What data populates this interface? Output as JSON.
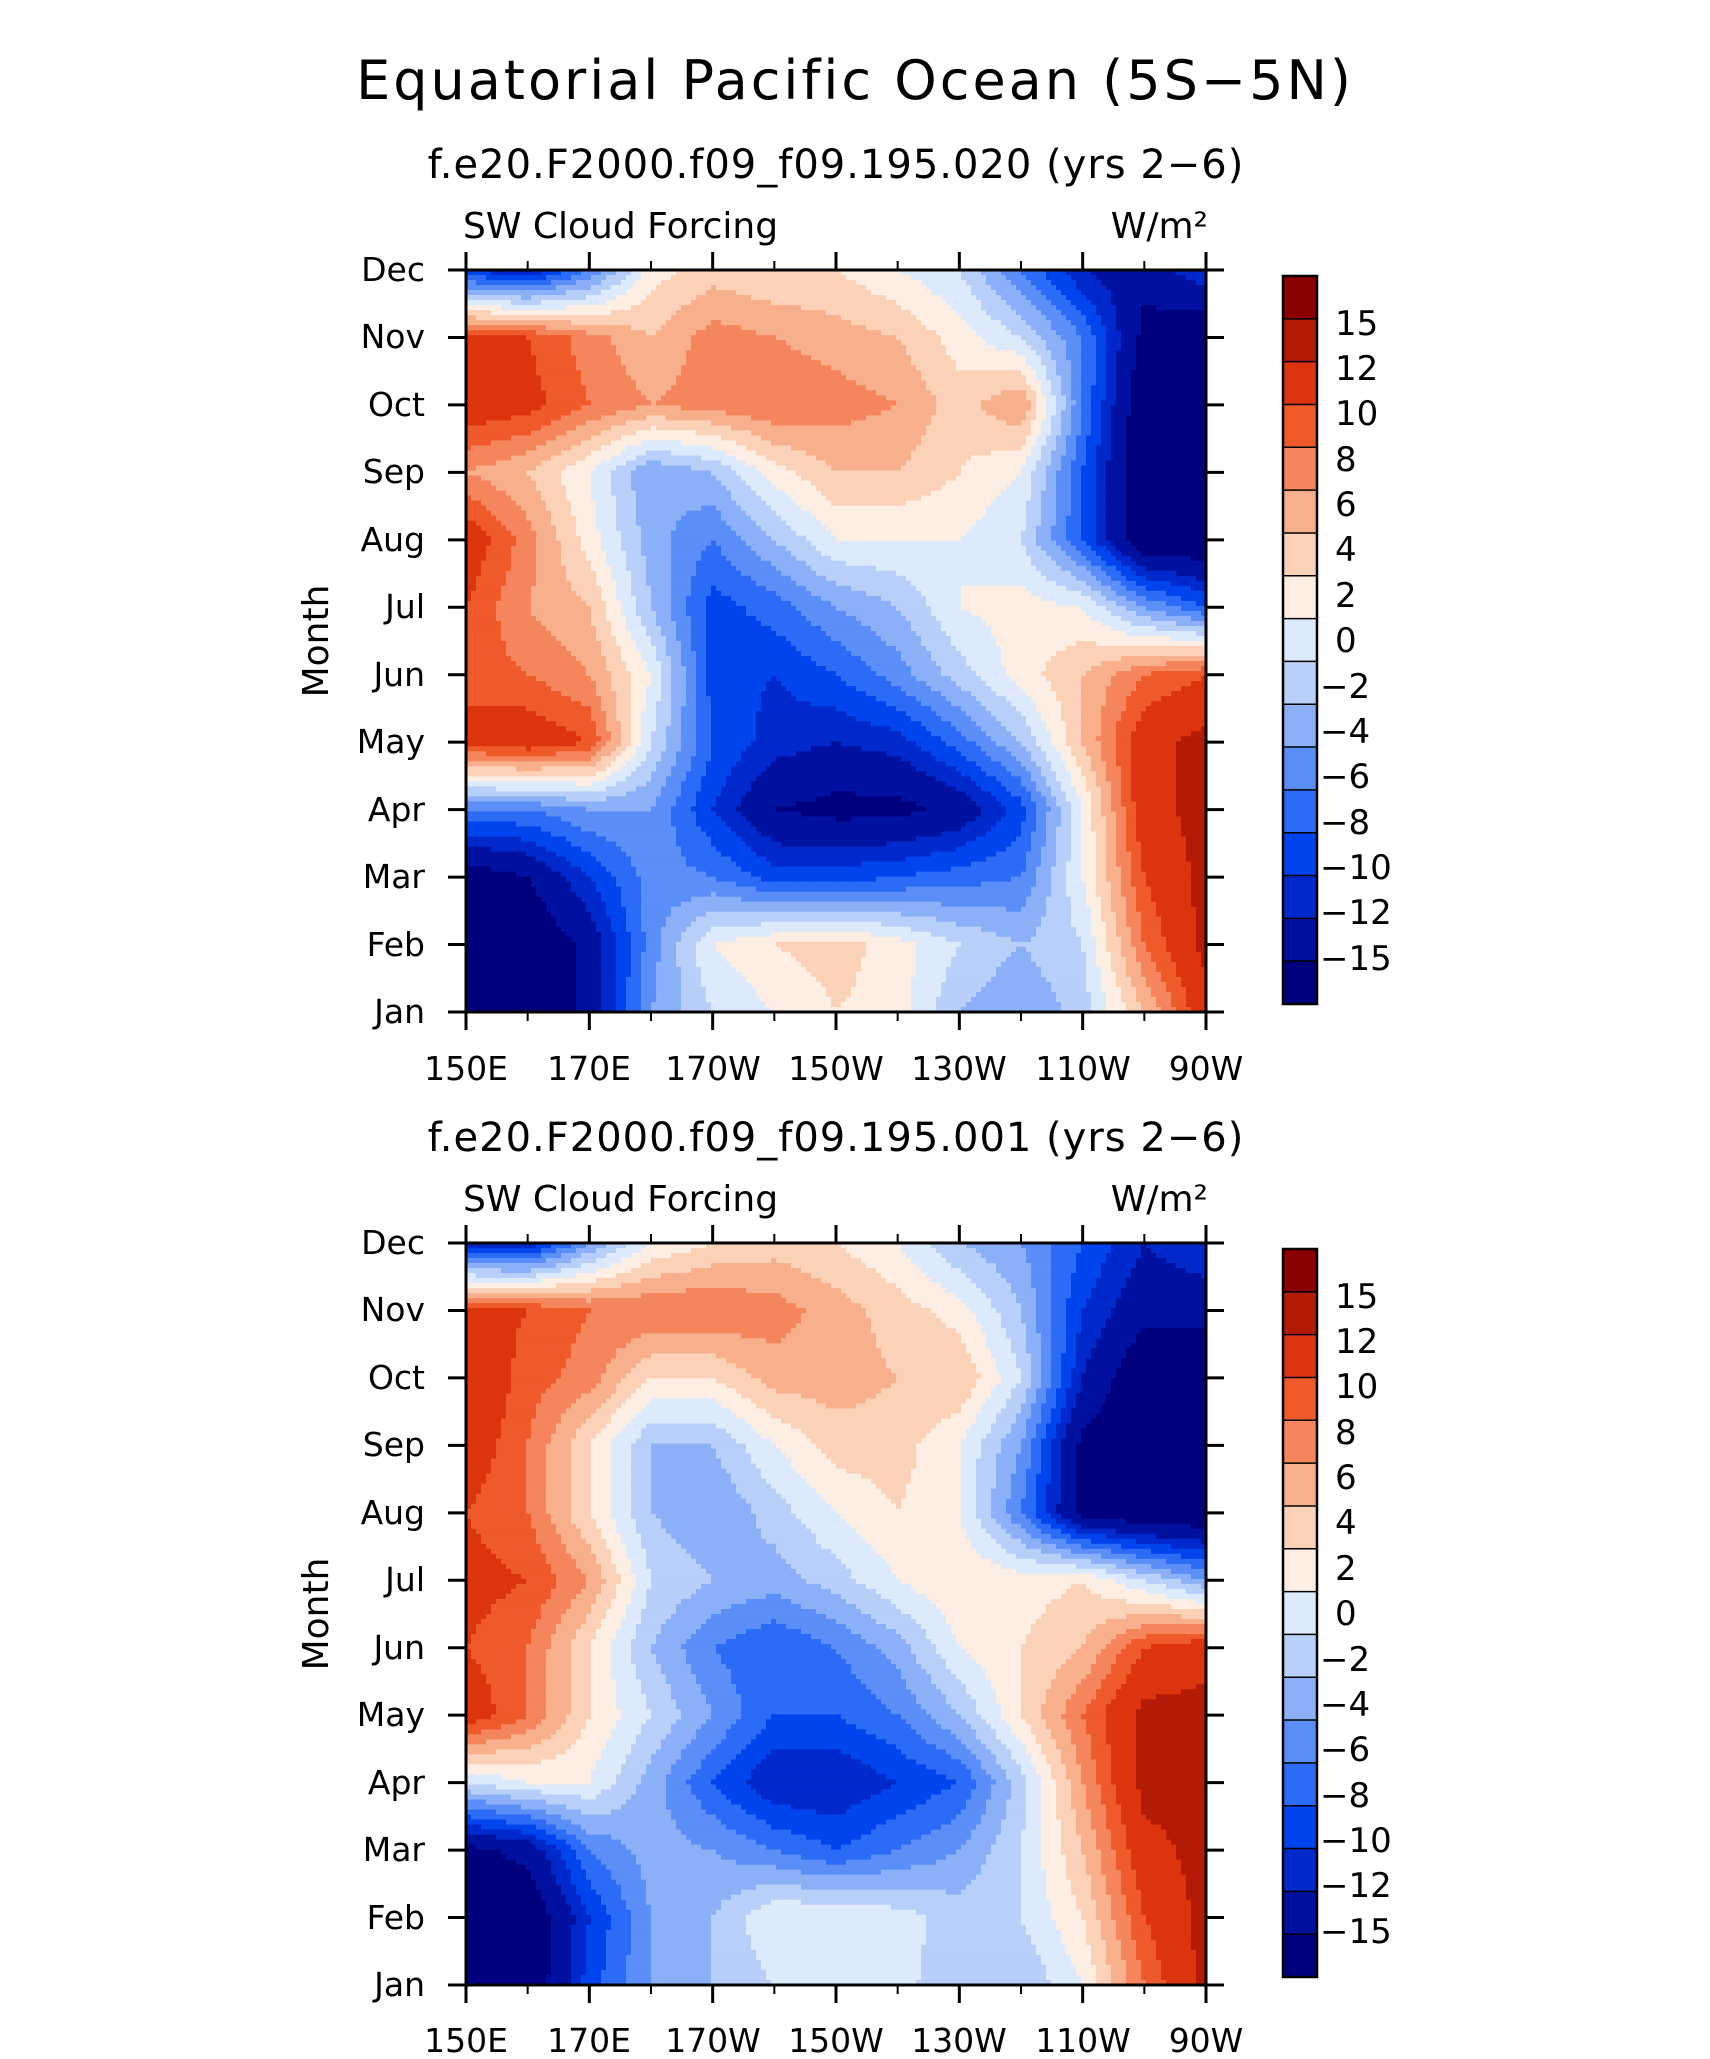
{
  "title": "Equatorial Pacific Ocean (5S−5N)",
  "colors": [
    "#00007f",
    "#0011a0",
    "#0029cc",
    "#0044ee",
    "#2b6bf5",
    "#5b8ff7",
    "#8cb0f8",
    "#b8cff9",
    "#ddeafb",
    "#fdeee3",
    "#fbd2b8",
    "#f8b08c",
    "#f4855c",
    "#ef5a2b",
    "#db340f",
    "#b31b06",
    "#8b0000"
  ],
  "chart_data": [
    {
      "type": "heatmap",
      "subtitle": "f.e20.F2000.f09_f09.195.020 (yrs 2−6)",
      "left_label": "SW Cloud Forcing",
      "units": "W/m²",
      "ylabel": "Month",
      "x_tick_labels": [
        "150E",
        "170E",
        "170W",
        "150W",
        "130W",
        "110W",
        "90W"
      ],
      "y_tick_labels": [
        "Jan",
        "Feb",
        "Mar",
        "Apr",
        "May",
        "Jun",
        "Jul",
        "Aug",
        "Sep",
        "Oct",
        "Nov",
        "Dec"
      ],
      "x": [
        150,
        160,
        170,
        180,
        190,
        200,
        210,
        220,
        230,
        240,
        250,
        260,
        270
      ],
      "colorbar_labels": [
        "15",
        "12",
        "10",
        "8",
        "6",
        "4",
        "2",
        "0",
        "−2",
        "−4",
        "−6",
        "−8",
        "−10",
        "−12",
        "−15"
      ],
      "levels": [
        -15,
        -12,
        -10,
        -8,
        -6,
        -4,
        -2,
        0,
        2,
        4,
        6,
        8,
        10,
        12,
        15
      ],
      "values": [
        [
          -18,
          -18,
          -14,
          -4,
          0,
          2,
          4,
          3,
          -2,
          -4,
          -1,
          6,
          14
        ],
        [
          -18,
          -18,
          -14,
          -5,
          2,
          4,
          5,
          3,
          0,
          -2,
          0,
          10,
          16
        ],
        [
          -17,
          -15,
          -10,
          -5,
          -6,
          -9,
          -9,
          -8,
          -7,
          -6,
          2,
          12,
          16
        ],
        [
          -6,
          -6,
          -4,
          -4,
          -10,
          -15,
          -16,
          -16,
          -14,
          -9,
          2,
          14,
          16
        ],
        [
          13,
          14,
          12,
          0,
          -8,
          -11,
          -12,
          -11,
          -7,
          -2,
          6,
          14,
          16
        ],
        [
          11,
          10,
          8,
          2,
          -9,
          -10,
          -8,
          -5,
          -1,
          3,
          6,
          10,
          12
        ],
        [
          12,
          8,
          6,
          -2,
          -9,
          -7,
          -4,
          -2,
          2,
          3,
          2,
          -4,
          -8
        ],
        [
          14,
          9,
          3,
          -3,
          -6,
          -2,
          2,
          2,
          2,
          0,
          -8,
          -18,
          -18
        ],
        [
          8,
          6,
          2,
          -4,
          -2,
          3,
          6,
          6,
          4,
          2,
          -8,
          -18,
          -18
        ],
        [
          14,
          13,
          10,
          8,
          9,
          10,
          9,
          8,
          5,
          8,
          -6,
          -18,
          -18
        ],
        [
          13,
          12,
          9,
          6,
          9,
          8,
          7,
          6,
          3,
          0,
          -6,
          -16,
          -18
        ],
        [
          -10,
          -12,
          -6,
          3,
          5,
          4,
          4,
          2,
          0,
          -6,
          -12,
          -14,
          -10
        ]
      ]
    },
    {
      "type": "heatmap",
      "subtitle": "f.e20.F2000.f09_f09.195.001 (yrs 2−6)",
      "left_label": "SW Cloud Forcing",
      "units": "W/m²",
      "ylabel": "Month",
      "x_tick_labels": [
        "150E",
        "170E",
        "170W",
        "150W",
        "130W",
        "110W",
        "90W"
      ],
      "y_tick_labels": [
        "Jan",
        "Feb",
        "Mar",
        "Apr",
        "May",
        "Jun",
        "Jul",
        "Aug",
        "Sep",
        "Oct",
        "Nov",
        "Dec"
      ],
      "x": [
        150,
        160,
        170,
        180,
        190,
        200,
        210,
        220,
        230,
        240,
        250,
        260,
        270
      ],
      "colorbar_labels": [
        "15",
        "12",
        "10",
        "8",
        "6",
        "4",
        "2",
        "0",
        "−2",
        "−4",
        "−6",
        "−8",
        "−10",
        "−12",
        "−15"
      ],
      "levels": [
        -15,
        -12,
        -10,
        -8,
        -6,
        -4,
        -2,
        0,
        2,
        4,
        6,
        8,
        10,
        12,
        15
      ],
      "values": [
        [
          -18,
          -18,
          -9,
          -4,
          -2,
          0,
          2,
          1,
          -2,
          -2,
          2,
          10,
          16
        ],
        [
          -18,
          -18,
          -10,
          -4,
          -2,
          2,
          2,
          1,
          -1,
          0,
          4,
          12,
          16
        ],
        [
          -16,
          -14,
          -6,
          -3,
          -4,
          -6,
          -8,
          -6,
          -4,
          0,
          6,
          14,
          16
        ],
        [
          0,
          2,
          2,
          -3,
          -8,
          -12,
          -12,
          -10,
          -8,
          -1,
          8,
          16,
          16
        ],
        [
          14,
          10,
          4,
          0,
          -4,
          -8,
          -8,
          -6,
          -2,
          4,
          10,
          16,
          16
        ],
        [
          12,
          10,
          4,
          -2,
          -6,
          -8,
          -6,
          -3,
          2,
          4,
          6,
          12,
          14
        ],
        [
          13,
          12,
          8,
          0,
          -2,
          -3,
          -1,
          2,
          4,
          3,
          4,
          0,
          -4
        ],
        [
          12,
          10,
          4,
          -2,
          -4,
          -1,
          2,
          4,
          2,
          -6,
          -16,
          -18,
          -18
        ],
        [
          14,
          10,
          4,
          -2,
          -2,
          2,
          5,
          5,
          2,
          -4,
          -16,
          -18,
          -18
        ],
        [
          15,
          11,
          9,
          4,
          4,
          7,
          7,
          6,
          6,
          0,
          -12,
          -18,
          -18
        ],
        [
          13,
          12,
          10,
          10,
          10,
          9,
          7,
          5,
          3,
          -2,
          -10,
          -14,
          -14
        ],
        [
          -12,
          -12,
          -4,
          2,
          4,
          5,
          4,
          2,
          -2,
          -4,
          -8,
          -12,
          -10
        ]
      ]
    }
  ]
}
